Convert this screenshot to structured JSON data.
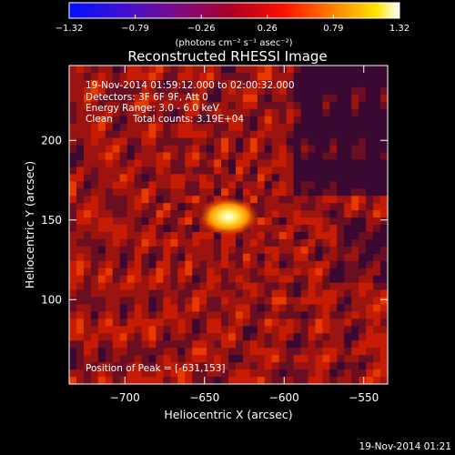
{
  "chart_data": {
    "type": "heatmap",
    "title": "Reconstructed RHESSI Image",
    "xlabel": "Heliocentric X (arcsec)",
    "ylabel": "Heliocentric Y (arcsec)",
    "xlim": [
      -735,
      -535
    ],
    "ylim": [
      47,
      247
    ],
    "x_ticks": [
      -700,
      -650,
      -600,
      -550
    ],
    "x_tick_labels": [
      "−700",
      "−650",
      "−600",
      "−550"
    ],
    "y_ticks": [
      100,
      150,
      200
    ],
    "y_tick_labels": [
      "100",
      "150",
      "200"
    ],
    "peak": {
      "x": -631,
      "y": 153
    },
    "grid": false,
    "colorbar": {
      "position": "top",
      "min": -1.32,
      "max": 1.32,
      "tick_labels": [
        "−1.32",
        "−0.79",
        "−0.26",
        "0.26",
        "0.79",
        "1.32"
      ],
      "units": "(photons cm⁻² s⁻¹ asec⁻²)",
      "colors": [
        "#0000ff",
        "#4000c0",
        "#800080",
        "#ff0000",
        "#ff8000",
        "#ffff00",
        "#ffffff"
      ]
    },
    "annotations": {
      "time_range": "19-Nov-2014 01:59:12.000 to 02:00:32.000",
      "detectors": "Detectors: 3F 6F 9F, Att 0",
      "energy_range": "Energy Range: 3.0 - 6.0 keV",
      "method": "Clean",
      "total_counts": "Total counts: 3.19E+04",
      "peak_position": "Position of Peak = [-631,153]"
    },
    "timestamp": "19-Nov-2014 01:21"
  }
}
